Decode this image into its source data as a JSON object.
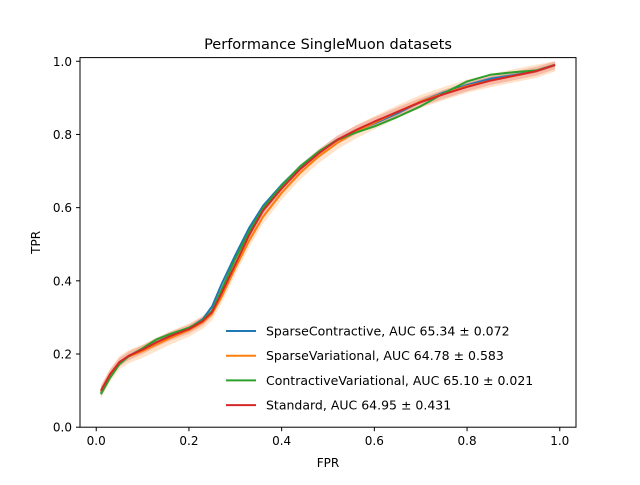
{
  "chart_data": {
    "type": "line",
    "title": "Performance SingleMuon datasets",
    "xlabel": "FPR",
    "ylabel": "TPR",
    "xlim": [
      -0.035,
      1.035
    ],
    "ylim": [
      0.0,
      1.01
    ],
    "xticks": [
      0.0,
      0.2,
      0.4,
      0.6,
      0.8,
      1.0
    ],
    "xtick_labels": [
      "0.0",
      "0.2",
      "0.4",
      "0.6",
      "0.8",
      "1.0"
    ],
    "yticks": [
      0.0,
      0.2,
      0.4,
      0.6,
      0.8,
      1.0
    ],
    "ytick_labels": [
      "0.0",
      "0.2",
      "0.4",
      "0.6",
      "0.8",
      "1.0"
    ],
    "grid": false,
    "legend_position": "lower-right",
    "series": [
      {
        "name": "SparseContractive, AUC 65.34 ± 0.072",
        "color": "#1f77b4",
        "band": 0.005,
        "x": [
          0.01,
          0.03,
          0.05,
          0.07,
          0.1,
          0.13,
          0.16,
          0.2,
          0.23,
          0.25,
          0.27,
          0.3,
          0.33,
          0.36,
          0.4,
          0.44,
          0.48,
          0.52,
          0.56,
          0.6,
          0.65,
          0.7,
          0.75,
          0.8,
          0.85,
          0.9,
          0.95,
          0.99
        ],
        "y": [
          0.094,
          0.14,
          0.175,
          0.194,
          0.212,
          0.232,
          0.249,
          0.27,
          0.295,
          0.33,
          0.39,
          0.47,
          0.545,
          0.605,
          0.662,
          0.712,
          0.752,
          0.785,
          0.81,
          0.83,
          0.858,
          0.89,
          0.915,
          0.935,
          0.952,
          0.962,
          0.974,
          0.99
        ]
      },
      {
        "name": "SparseVariational, AUC 64.78 ± 0.583",
        "color": "#ff7f0e",
        "band": 0.018,
        "x": [
          0.01,
          0.03,
          0.05,
          0.07,
          0.1,
          0.13,
          0.16,
          0.2,
          0.23,
          0.25,
          0.27,
          0.3,
          0.33,
          0.36,
          0.4,
          0.44,
          0.48,
          0.52,
          0.56,
          0.6,
          0.65,
          0.7,
          0.75,
          0.8,
          0.85,
          0.9,
          0.95,
          0.99
        ],
        "y": [
          0.097,
          0.142,
          0.176,
          0.193,
          0.208,
          0.226,
          0.244,
          0.265,
          0.287,
          0.31,
          0.355,
          0.435,
          0.51,
          0.575,
          0.64,
          0.695,
          0.74,
          0.777,
          0.807,
          0.832,
          0.862,
          0.89,
          0.912,
          0.932,
          0.947,
          0.96,
          0.973,
          0.99
        ]
      },
      {
        "name": "ContractiveVariational, AUC 65.10 ± 0.021",
        "color": "#2ca02c",
        "band": 0.002,
        "x": [
          0.01,
          0.03,
          0.05,
          0.07,
          0.1,
          0.13,
          0.16,
          0.2,
          0.23,
          0.25,
          0.27,
          0.3,
          0.33,
          0.36,
          0.4,
          0.44,
          0.48,
          0.52,
          0.56,
          0.6,
          0.65,
          0.7,
          0.75,
          0.8,
          0.85,
          0.9,
          0.95,
          0.99
        ],
        "y": [
          0.09,
          0.135,
          0.172,
          0.194,
          0.216,
          0.24,
          0.255,
          0.272,
          0.292,
          0.318,
          0.375,
          0.46,
          0.535,
          0.598,
          0.66,
          0.713,
          0.753,
          0.785,
          0.805,
          0.822,
          0.848,
          0.877,
          0.913,
          0.945,
          0.963,
          0.97,
          0.975,
          0.99
        ]
      },
      {
        "name": "Standard, AUC 64.95 ± 0.431",
        "color": "#d62728",
        "band": 0.012,
        "x": [
          0.01,
          0.03,
          0.05,
          0.07,
          0.1,
          0.13,
          0.16,
          0.2,
          0.23,
          0.25,
          0.27,
          0.3,
          0.33,
          0.36,
          0.4,
          0.44,
          0.48,
          0.52,
          0.56,
          0.6,
          0.65,
          0.7,
          0.75,
          0.8,
          0.85,
          0.9,
          0.95,
          0.99
        ],
        "y": [
          0.1,
          0.145,
          0.178,
          0.195,
          0.212,
          0.232,
          0.249,
          0.268,
          0.29,
          0.315,
          0.365,
          0.445,
          0.525,
          0.592,
          0.652,
          0.705,
          0.748,
          0.785,
          0.812,
          0.835,
          0.862,
          0.888,
          0.91,
          0.93,
          0.947,
          0.96,
          0.973,
          0.99
        ]
      }
    ]
  }
}
